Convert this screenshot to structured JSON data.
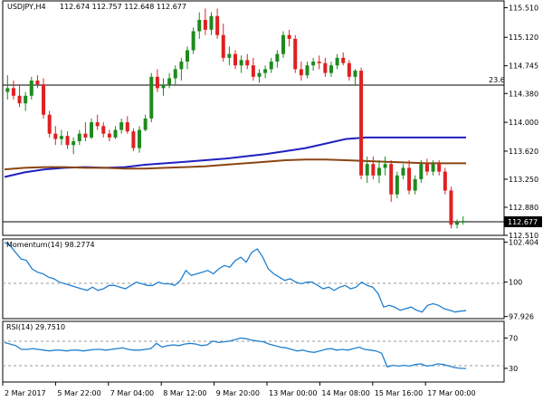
{
  "chart_data": [
    {
      "type": "candlestick",
      "panel": "price",
      "title": "USDJPY,H4",
      "ohlc_text": "112.674 112.757 112.648 112.677",
      "last_price": "112.677",
      "level_label": "23.6",
      "ylim": [
        112.51,
        115.6
      ],
      "yticks": [
        "115.510",
        "115.120",
        "114.745",
        "114.380",
        "114.000",
        "113.620",
        "113.250",
        "112.880",
        "112.510"
      ],
      "moving_averages": [
        {
          "color": "#2020c0",
          "values": [
            113.28,
            113.34,
            113.38,
            113.4,
            113.41,
            113.4,
            113.41,
            113.44,
            113.46,
            113.48,
            113.5,
            113.52,
            113.55,
            113.58,
            113.62,
            113.66,
            113.72,
            113.78,
            113.8,
            113.8,
            113.8,
            113.8,
            113.8,
            113.8
          ]
        },
        {
          "color": "#8b4513",
          "values": [
            113.38,
            113.4,
            113.41,
            113.41,
            113.4,
            113.4,
            113.39,
            113.39,
            113.4,
            113.41,
            113.42,
            113.44,
            113.46,
            113.48,
            113.5,
            113.51,
            113.51,
            113.5,
            113.49,
            113.48,
            113.47,
            113.46,
            113.46,
            113.46
          ]
        }
      ],
      "candles": [
        [
          114.4,
          114.62,
          114.3,
          114.45
        ],
        [
          114.45,
          114.55,
          114.3,
          114.35
        ],
        [
          114.35,
          114.5,
          114.2,
          114.25
        ],
        [
          114.25,
          114.4,
          114.15,
          114.35
        ],
        [
          114.35,
          114.6,
          114.3,
          114.55
        ],
        [
          114.55,
          114.62,
          114.45,
          114.5
        ],
        [
          114.5,
          114.58,
          114.05,
          114.1
        ],
        [
          114.1,
          114.15,
          113.8,
          113.85
        ],
        [
          113.85,
          113.95,
          113.7,
          113.78
        ],
        [
          113.78,
          113.9,
          113.7,
          113.82
        ],
        [
          113.82,
          113.88,
          113.65,
          113.7
        ],
        [
          113.7,
          113.8,
          113.58,
          113.75
        ],
        [
          113.75,
          113.9,
          113.7,
          113.85
        ],
        [
          113.85,
          114.0,
          113.75,
          113.8
        ],
        [
          113.8,
          114.05,
          113.78,
          114.0
        ],
        [
          114.0,
          114.1,
          113.9,
          113.95
        ],
        [
          113.95,
          114.0,
          113.8,
          113.85
        ],
        [
          113.85,
          113.9,
          113.75,
          113.8
        ],
        [
          113.8,
          113.95,
          113.78,
          113.9
        ],
        [
          113.9,
          114.05,
          113.85,
          114.0
        ],
        [
          114.0,
          114.08,
          113.85,
          113.88
        ],
        [
          113.88,
          113.92,
          113.62,
          113.66
        ],
        [
          113.66,
          113.95,
          113.6,
          113.9
        ],
        [
          113.9,
          114.1,
          113.88,
          114.05
        ],
        [
          114.05,
          114.65,
          114.0,
          114.6
        ],
        [
          114.6,
          114.7,
          114.4,
          114.45
        ],
        [
          114.45,
          114.58,
          114.35,
          114.5
        ],
        [
          114.5,
          114.65,
          114.45,
          114.58
        ],
        [
          114.58,
          114.75,
          114.5,
          114.7
        ],
        [
          114.7,
          114.85,
          114.55,
          114.8
        ],
        [
          114.8,
          115.0,
          114.7,
          114.95
        ],
        [
          114.95,
          115.25,
          114.9,
          115.2
        ],
        [
          115.2,
          115.45,
          115.1,
          115.35
        ],
        [
          115.35,
          115.5,
          115.15,
          115.22
        ],
        [
          115.22,
          115.45,
          115.15,
          115.4
        ],
        [
          115.4,
          115.5,
          115.1,
          115.15
        ],
        [
          115.15,
          115.3,
          114.8,
          114.85
        ],
        [
          114.85,
          115.0,
          114.75,
          114.9
        ],
        [
          114.9,
          114.95,
          114.7,
          114.75
        ],
        [
          114.75,
          114.88,
          114.65,
          114.82
        ],
        [
          114.82,
          114.9,
          114.7,
          114.75
        ],
        [
          114.75,
          114.85,
          114.55,
          114.6
        ],
        [
          114.6,
          114.7,
          114.52,
          114.65
        ],
        [
          114.65,
          114.75,
          114.58,
          114.7
        ],
        [
          114.7,
          114.85,
          114.65,
          114.8
        ],
        [
          114.8,
          114.95,
          114.72,
          114.9
        ],
        [
          114.9,
          115.2,
          114.85,
          115.15
        ],
        [
          115.15,
          115.22,
          115.0,
          115.1
        ],
        [
          115.1,
          115.15,
          114.65,
          114.7
        ],
        [
          114.7,
          114.8,
          114.55,
          114.62
        ],
        [
          114.62,
          114.8,
          114.58,
          114.75
        ],
        [
          114.75,
          114.85,
          114.68,
          114.8
        ],
        [
          114.8,
          114.88,
          114.7,
          114.78
        ],
        [
          114.78,
          114.85,
          114.6,
          114.65
        ],
        [
          114.65,
          114.8,
          114.6,
          114.75
        ],
        [
          114.75,
          114.9,
          114.7,
          114.85
        ],
        [
          114.85,
          114.92,
          114.75,
          114.78
        ],
        [
          114.78,
          114.82,
          114.55,
          114.6
        ],
        [
          114.6,
          114.7,
          114.48,
          114.68
        ],
        [
          114.68,
          114.72,
          113.25,
          113.3
        ],
        [
          113.3,
          113.55,
          113.2,
          113.45
        ],
        [
          113.45,
          113.55,
          113.25,
          113.3
        ],
        [
          113.3,
          113.5,
          113.2,
          113.4
        ],
        [
          113.4,
          113.55,
          113.3,
          113.45
        ],
        [
          113.45,
          113.5,
          112.95,
          113.05
        ],
        [
          113.05,
          113.35,
          113.0,
          113.3
        ],
        [
          113.3,
          113.45,
          113.25,
          113.4
        ],
        [
          113.4,
          113.5,
          113.05,
          113.1
        ],
        [
          113.1,
          113.3,
          113.05,
          113.25
        ],
        [
          113.25,
          113.5,
          113.2,
          113.45
        ],
        [
          113.45,
          113.52,
          113.3,
          113.35
        ],
        [
          113.35,
          113.5,
          113.3,
          113.45
        ],
        [
          113.45,
          113.5,
          113.3,
          113.35
        ],
        [
          113.35,
          113.4,
          113.05,
          113.1
        ],
        [
          113.1,
          113.15,
          112.6,
          112.65
        ],
        [
          112.65,
          112.72,
          112.6,
          112.68
        ],
        [
          112.68,
          112.76,
          112.65,
          112.7
        ]
      ]
    },
    {
      "type": "line",
      "panel": "momentum",
      "title": "Momentum(14) 98.2774",
      "ylim": [
        97.8,
        102.6
      ],
      "yticks": [
        "102.404",
        "100",
        "97.926"
      ],
      "reference": 100,
      "series": [
        {
          "color": "#2080d0",
          "values": [
            102.4,
            102.2,
            101.8,
            101.4,
            101.3,
            100.8,
            100.6,
            100.5,
            100.3,
            100.2,
            100.0,
            99.9,
            99.8,
            99.7,
            99.6,
            99.5,
            99.7,
            99.5,
            99.6,
            99.8,
            99.8,
            99.7,
            99.6,
            99.8,
            100.0,
            99.9,
            99.8,
            99.8,
            100.0,
            99.9,
            99.9,
            99.8,
            100.1,
            100.7,
            100.4,
            100.5,
            100.6,
            100.7,
            100.5,
            100.8,
            101.0,
            100.9,
            101.3,
            101.5,
            101.2,
            101.8,
            102.0,
            101.5,
            100.8,
            100.5,
            100.3,
            100.1,
            100.2,
            100.0,
            99.9,
            100.0,
            100.0,
            99.8,
            99.6,
            99.7,
            99.5,
            99.7,
            99.8,
            99.6,
            99.7,
            100.0,
            99.8,
            99.7,
            99.3,
            98.5,
            98.6,
            98.5,
            98.3,
            98.4,
            98.5,
            98.3,
            98.2,
            98.6,
            98.7,
            98.6,
            98.4,
            98.3,
            98.2,
            98.25,
            98.28
          ]
        }
      ]
    },
    {
      "type": "line",
      "panel": "rsi",
      "title": "RSI(14) 29.7510",
      "ylim": [
        12,
        92
      ],
      "yticks": [
        "70",
        "30"
      ],
      "levels": [
        70,
        30
      ],
      "series": [
        {
          "color": "#2080d0",
          "values": [
            64,
            62,
            60,
            55,
            55,
            56,
            55,
            54,
            53,
            54,
            54,
            53,
            54,
            54,
            53,
            54,
            55,
            55,
            54,
            55,
            56,
            57,
            55,
            54,
            54,
            55,
            56,
            63,
            58,
            60,
            61,
            60,
            62,
            63,
            62,
            60,
            61,
            66,
            64,
            65,
            66,
            68,
            70,
            69,
            67,
            66,
            65,
            62,
            60,
            58,
            57,
            55,
            53,
            54,
            52,
            51,
            53,
            55,
            56,
            54,
            55,
            54,
            56,
            58,
            55,
            54,
            53,
            50,
            32,
            34,
            33,
            34,
            33,
            35,
            36,
            33,
            34,
            36,
            35,
            33,
            31,
            30,
            29.75
          ]
        }
      ]
    }
  ],
  "x_axis_labels": [
    "2 Mar 2017",
    "5 Mar 22:00",
    "7 Mar 04:00",
    "8 Mar 12:00",
    "9 Mar 20:00",
    "13 Mar 00:00",
    "14 Mar 08:00",
    "15 Mar 16:00",
    "17 Mar 00:00"
  ],
  "colors": {
    "bull": "#1e8a1e",
    "bear": "#e02020",
    "axis": "#000000",
    "dashed": "#999999"
  }
}
